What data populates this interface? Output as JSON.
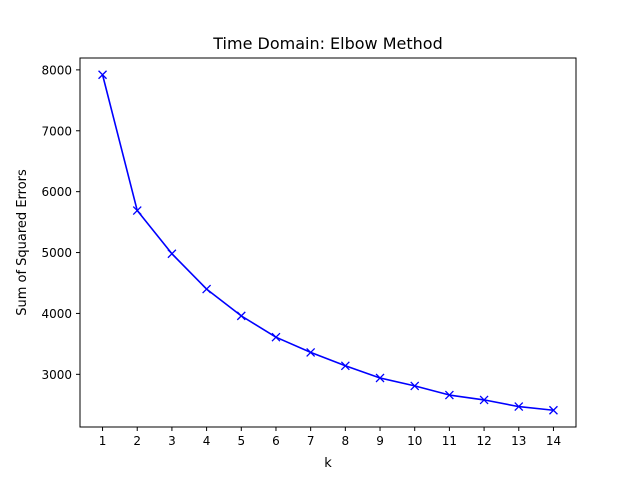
{
  "chart_data": {
    "type": "line",
    "title": "Time Domain: Elbow Method",
    "xlabel": "k",
    "ylabel": "Sum of Squared Errors",
    "x": [
      1,
      2,
      3,
      4,
      5,
      6,
      7,
      8,
      9,
      10,
      11,
      12,
      13,
      14
    ],
    "series": [
      {
        "values": [
          7920,
          5690,
          4980,
          4400,
          3960,
          3610,
          3360,
          3140,
          2940,
          2810,
          2660,
          2580,
          2470,
          2410
        ],
        "color": "#0000ff",
        "marker": "x"
      }
    ],
    "xlim": [
      0.35,
      14.65
    ],
    "ylim": [
      2135,
      8195
    ],
    "xticks": [
      1,
      2,
      3,
      4,
      5,
      6,
      7,
      8,
      9,
      10,
      11,
      12,
      13,
      14
    ],
    "yticks": [
      3000,
      4000,
      5000,
      6000,
      7000,
      8000
    ],
    "grid": false,
    "legend": "none"
  }
}
